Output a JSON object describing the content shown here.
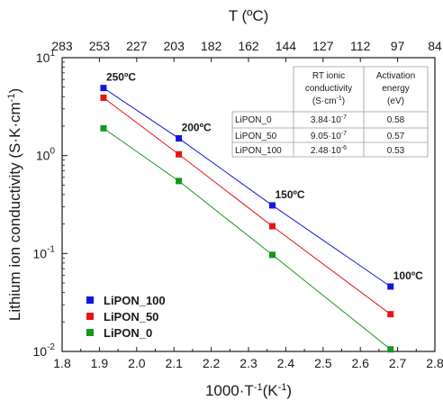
{
  "chart_data": {
    "type": "scatter",
    "title": "",
    "xlabel": "1000·T",
    "xlabel_sup": "-1",
    "xlabel_unit": "(K",
    "xlabel_unit_sup": "-1",
    "xlabel_end": ")",
    "ylabel": "Lithium ion conductivity (S·K·cm",
    "ylabel_sup": "-1",
    "ylabel_end": ")",
    "x2label": "T (ºC)",
    "xlim": [
      1.8,
      2.8
    ],
    "ylim": [
      0.01,
      10
    ],
    "yscale": "log",
    "grid": false,
    "legend_position": "bottom-left",
    "x_ticks": [
      "1.8",
      "1.9",
      "2.0",
      "2.1",
      "2.2",
      "2.3",
      "2.4",
      "2.5",
      "2.6",
      "2.7",
      "2.8"
    ],
    "x2_ticks": [
      "283",
      "253",
      "227",
      "203",
      "182",
      "162",
      "144",
      "127",
      "112",
      "97",
      "84"
    ],
    "y_ticks": [
      {
        "base": "10",
        "exp": "-2"
      },
      {
        "base": "10",
        "exp": "-1"
      },
      {
        "base": "10",
        "exp": "0"
      },
      {
        "base": "10",
        "exp": "1"
      }
    ],
    "x": [
      1.911,
      2.113,
      2.364,
      2.681
    ],
    "series": [
      {
        "name": "LiPON_100",
        "color": "#1414e0",
        "values": [
          4.9,
          1.5,
          0.31,
          0.046
        ]
      },
      {
        "name": "LiPON_50",
        "color": "#e81414",
        "values": [
          3.9,
          1.03,
          0.19,
          0.024
        ]
      },
      {
        "name": "LiPON_0",
        "color": "#16961e",
        "values": [
          1.9,
          0.55,
          0.097,
          0.0105
        ]
      }
    ],
    "annotations": [
      {
        "text": "250ºC",
        "x": 1.911
      },
      {
        "text": "200ºC",
        "x": 2.113
      },
      {
        "text": "150ºC",
        "x": 2.364
      },
      {
        "text": "100ºC",
        "x": 2.681
      }
    ],
    "table": {
      "headers": [
        "",
        "RT ionic conductivity (S·cm-1)",
        "Activation energy (eV)"
      ],
      "header_lines": [
        [
          ""
        ],
        [
          "RT ionic",
          "conductivity",
          "(S·cm-1)"
        ],
        [
          "Activation",
          "energy",
          "(eV)"
        ]
      ],
      "rows": [
        [
          "LiPON_0",
          "3.84·10-7",
          "0.58"
        ],
        [
          "LiPON_50",
          "9.05·10-7",
          "0.57"
        ],
        [
          "LiPON_100",
          "2.48·10-6",
          "0.53"
        ]
      ]
    }
  }
}
